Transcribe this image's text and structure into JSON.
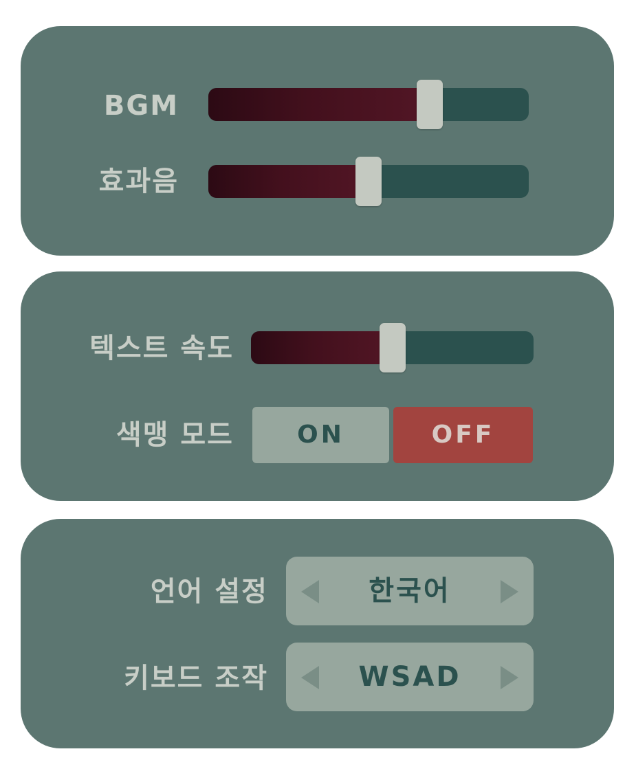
{
  "audio": {
    "bgm": {
      "label": "BGM",
      "value": 0.69
    },
    "sfx": {
      "label": "효과음",
      "value": 0.5
    }
  },
  "display": {
    "text_speed": {
      "label": "텍스트 속도",
      "value": 0.5
    },
    "colorblind": {
      "label": "색맹 모드",
      "on_label": "ON",
      "off_label": "OFF",
      "selected": "OFF"
    }
  },
  "control": {
    "language": {
      "label": "언어 설정",
      "value": "한국어"
    },
    "keyboard": {
      "label": "키보드 조작",
      "value": "WSAD"
    }
  },
  "colors": {
    "panel": "#5c7671",
    "slider_track": "#2b514e",
    "slider_fill": "#521625",
    "thumb": "#c4c9c1",
    "toggle_inactive": "#97a79e",
    "toggle_active": "#a2443f"
  },
  "icons": {
    "prev": "arrow-left-icon",
    "next": "arrow-right-icon"
  }
}
